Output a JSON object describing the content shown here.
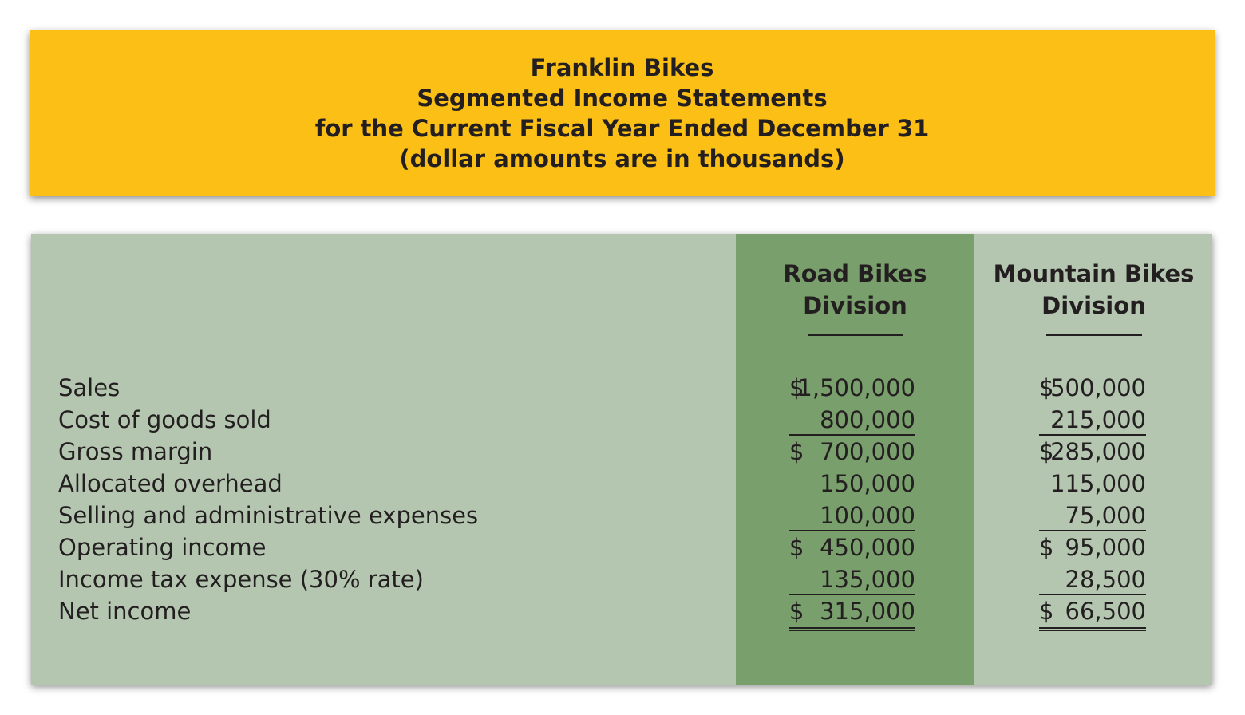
{
  "header": {
    "lines": [
      "Franklin Bikes",
      "Segmented Income Statements",
      "for the Current Fiscal Year Ended December 31",
      "(dollar amounts are in thousands)"
    ]
  },
  "columns": {
    "road": {
      "line1": "Road Bikes",
      "line2": "Division"
    },
    "mountain": {
      "line1": "Mountain Bikes",
      "line2": "Division"
    }
  },
  "rows": [
    {
      "label": "Sales",
      "road": {
        "cur": "$",
        "val": "1,500,000"
      },
      "mountain": {
        "cur": "$",
        "val": "500,000"
      }
    },
    {
      "label": "Cost of goods sold",
      "road": {
        "cur": "",
        "val": "800,000"
      },
      "mountain": {
        "cur": "",
        "val": "215,000"
      }
    },
    {
      "label": "Gross margin",
      "road": {
        "cur": "$",
        "val": "700,000"
      },
      "mountain": {
        "cur": "$",
        "val": "285,000"
      }
    },
    {
      "label": "Allocated overhead",
      "road": {
        "cur": "",
        "val": "150,000"
      },
      "mountain": {
        "cur": "",
        "val": "115,000"
      }
    },
    {
      "label": "Selling and administrative expenses",
      "road": {
        "cur": "",
        "val": "100,000"
      },
      "mountain": {
        "cur": "",
        "val": "75,000"
      }
    },
    {
      "label": "Operating income",
      "road": {
        "cur": "$",
        "val": "450,000"
      },
      "mountain": {
        "cur": "$",
        "val": "95,000"
      }
    },
    {
      "label": "Income tax expense (30% rate)",
      "road": {
        "cur": "",
        "val": "135,000"
      },
      "mountain": {
        "cur": "",
        "val": "28,500"
      }
    },
    {
      "label": "Net income",
      "road": {
        "cur": "$",
        "val": "315,000"
      },
      "mountain": {
        "cur": "$",
        "val": "66,500"
      }
    }
  ],
  "colors": {
    "header_bg": "#fbbf16",
    "panel_bg": "#b4c5b0",
    "road_column_bg": "#799f6c"
  }
}
